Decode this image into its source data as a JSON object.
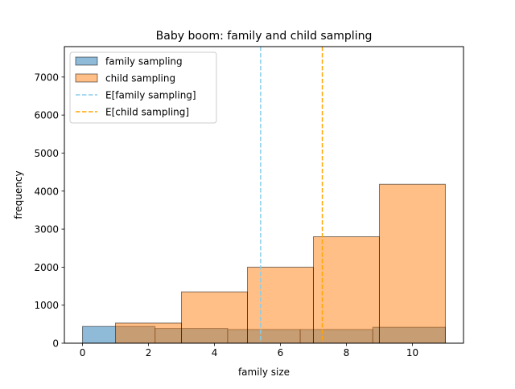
{
  "chart_data": {
    "type": "bar",
    "title": "Baby boom: family and child sampling",
    "xlabel": "family size",
    "ylabel": "frequency",
    "xlim": [
      -0.55,
      11.55
    ],
    "ylim": [
      0,
      7800
    ],
    "x_ticks": [
      0,
      2,
      4,
      6,
      8,
      10
    ],
    "y_ticks": [
      0,
      1000,
      2000,
      3000,
      4000,
      5000,
      6000,
      7000
    ],
    "grid": false,
    "legend_position": "top-left",
    "series": [
      {
        "name": "family sampling",
        "kind": "histogram",
        "color": "#1f77b4",
        "bins": [
          {
            "x0": 0.0,
            "x1": 2.2,
            "value": 440
          },
          {
            "x0": 2.2,
            "x1": 4.4,
            "value": 390
          },
          {
            "x0": 4.4,
            "x1": 6.6,
            "value": 360
          },
          {
            "x0": 6.6,
            "x1": 8.8,
            "value": 360
          },
          {
            "x0": 8.8,
            "x1": 11.0,
            "value": 420
          }
        ]
      },
      {
        "name": "child sampling",
        "kind": "histogram",
        "color": "#ff7f0e",
        "bins": [
          {
            "x0": 1.0,
            "x1": 3.0,
            "value": 530
          },
          {
            "x0": 3.0,
            "x1": 5.0,
            "value": 1350
          },
          {
            "x0": 5.0,
            "x1": 7.0,
            "value": 2000
          },
          {
            "x0": 7.0,
            "x1": 9.0,
            "value": 2800
          },
          {
            "x0": 9.0,
            "x1": 11.0,
            "value": 4180
          }
        ]
      },
      {
        "name": "E[family sampling]",
        "kind": "vline",
        "color": "#87ceeb",
        "x": 5.4
      },
      {
        "name": "E[child sampling]",
        "kind": "vline",
        "color": "#ffa500",
        "x": 7.27
      }
    ]
  }
}
